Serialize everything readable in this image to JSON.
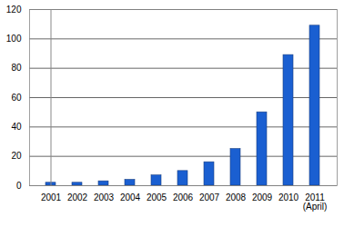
{
  "chart_data": {
    "type": "bar",
    "categories": [
      "2001",
      "2002",
      "2003",
      "2004",
      "2005",
      "2006",
      "2007",
      "2008",
      "2009",
      "2010",
      "2011\n(April)"
    ],
    "values": [
      2,
      2,
      3,
      4,
      7,
      10,
      16,
      25,
      50,
      89,
      109
    ],
    "color": "#1a5fd1",
    "ylim": [
      0,
      120
    ],
    "yticks": [
      0,
      20,
      40,
      60,
      80,
      100,
      120
    ],
    "grid": true
  }
}
